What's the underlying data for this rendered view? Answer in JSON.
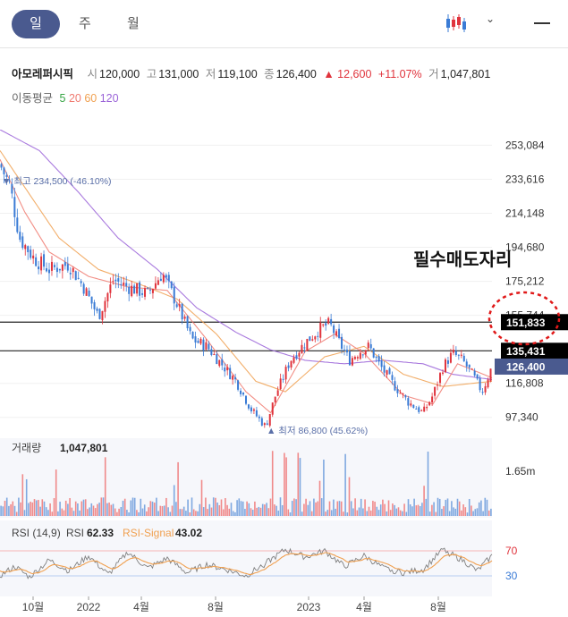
{
  "tabs": [
    {
      "label": "일",
      "active": true
    },
    {
      "label": "주",
      "active": false
    },
    {
      "label": "월",
      "active": false
    }
  ],
  "toolbar": {
    "chart_icon": "candlestick-icon",
    "dropdown_icon": "chevron-down-icon",
    "menu_icon": "menu-icon"
  },
  "quote": {
    "name": "아모레퍼시픽",
    "open_label": "시",
    "open": "120,000",
    "high_label": "고",
    "high": "131,000",
    "low_label": "저",
    "low": "119,100",
    "close_label": "종",
    "close": "126,400",
    "change": "▲ 12,600",
    "change_pct": "+11.07%",
    "volume_label": "거",
    "volume": "1,047,801"
  },
  "ma": {
    "label": "이동평균",
    "items": [
      {
        "period": "5",
        "color": "#36a544"
      },
      {
        "period": "20",
        "color": "#f07a70"
      },
      {
        "period": "60",
        "color": "#f0a050"
      },
      {
        "period": "120",
        "color": "#9a63d8"
      }
    ]
  },
  "colors": {
    "up": "#e0333c",
    "down": "#3a7bd5",
    "accent": "#4a5a8f",
    "rsi": "#808080",
    "rsi_signal": "#f0a050"
  },
  "chart_data": [
    {
      "type": "candlestick",
      "title": "",
      "x_ticks": [
        "10월",
        "2022",
        "4월",
        "8월",
        "2023",
        "4월",
        "8월"
      ],
      "y_ticks": [
        253084,
        233616,
        214148,
        194680,
        175212,
        155744,
        116808,
        97340
      ],
      "y_tick_labels": [
        "253,084",
        "233,616",
        "214,148",
        "194,680",
        "175,212",
        "155,744",
        "116,808",
        "97,340"
      ],
      "ylim": [
        88000,
        262000
      ],
      "close_path": [
        [
          0,
          242000
        ],
        [
          0.02,
          230000
        ],
        [
          0.04,
          200000
        ],
        [
          0.07,
          188000
        ],
        [
          0.1,
          182000
        ],
        [
          0.14,
          185000
        ],
        [
          0.17,
          172000
        ],
        [
          0.2,
          155000
        ],
        [
          0.23,
          176000
        ],
        [
          0.26,
          172000
        ],
        [
          0.3,
          168000
        ],
        [
          0.33,
          180000
        ],
        [
          0.36,
          162000
        ],
        [
          0.39,
          142000
        ],
        [
          0.42,
          138000
        ],
        [
          0.45,
          128000
        ],
        [
          0.48,
          118000
        ],
        [
          0.51,
          102000
        ],
        [
          0.54,
          92000
        ],
        [
          0.56,
          110000
        ],
        [
          0.59,
          130000
        ],
        [
          0.62,
          140000
        ],
        [
          0.65,
          148000
        ],
        [
          0.67,
          151000
        ],
        [
          0.69,
          140000
        ],
        [
          0.71,
          130000
        ],
        [
          0.73,
          135000
        ],
        [
          0.75,
          138000
        ],
        [
          0.77,
          128000
        ],
        [
          0.8,
          116000
        ],
        [
          0.83,
          106000
        ],
        [
          0.86,
          100000
        ],
        [
          0.88,
          110000
        ],
        [
          0.9,
          126000
        ],
        [
          0.92,
          134000
        ],
        [
          0.94,
          130000
        ],
        [
          0.96,
          122000
        ],
        [
          0.98,
          112000
        ],
        [
          1.0,
          126400
        ]
      ],
      "ma120_path": [
        [
          0,
          262000
        ],
        [
          0.08,
          250000
        ],
        [
          0.16,
          226000
        ],
        [
          0.24,
          200000
        ],
        [
          0.32,
          182000
        ],
        [
          0.4,
          160000
        ],
        [
          0.48,
          146000
        ],
        [
          0.55,
          136000
        ],
        [
          0.62,
          130000
        ],
        [
          0.7,
          128000
        ],
        [
          0.78,
          130000
        ],
        [
          0.86,
          128000
        ],
        [
          0.92,
          122000
        ],
        [
          1.0,
          119000
        ]
      ],
      "ma60_path": [
        [
          0,
          250000
        ],
        [
          0.06,
          225000
        ],
        [
          0.12,
          200000
        ],
        [
          0.2,
          182000
        ],
        [
          0.28,
          174000
        ],
        [
          0.36,
          165000
        ],
        [
          0.44,
          145000
        ],
        [
          0.52,
          118000
        ],
        [
          0.58,
          112000
        ],
        [
          0.66,
          132000
        ],
        [
          0.74,
          138000
        ],
        [
          0.82,
          122000
        ],
        [
          0.9,
          115000
        ],
        [
          1.0,
          118000
        ]
      ],
      "ma20_path": [
        [
          0,
          245000
        ],
        [
          0.05,
          215000
        ],
        [
          0.1,
          192000
        ],
        [
          0.18,
          178000
        ],
        [
          0.26,
          172000
        ],
        [
          0.34,
          170000
        ],
        [
          0.42,
          142000
        ],
        [
          0.5,
          112000
        ],
        [
          0.55,
          100000
        ],
        [
          0.62,
          135000
        ],
        [
          0.68,
          145000
        ],
        [
          0.74,
          134000
        ],
        [
          0.82,
          110000
        ],
        [
          0.88,
          105000
        ],
        [
          0.93,
          128000
        ],
        [
          1.0,
          120000
        ]
      ],
      "levels": [
        {
          "value": 151833,
          "label": "151,833"
        },
        {
          "value": 135431,
          "label": "135,431"
        }
      ],
      "current": {
        "value": 126400,
        "label": "126,400"
      },
      "high_note": "▼ 최고 234,500 (-46.10%)",
      "low_note": "▲ 최저 86,800 (45.62%)",
      "annotation": "필수매도자리"
    },
    {
      "type": "bar",
      "title": "거래량",
      "value_label": "1,047,801",
      "y_tick_labels": [
        "1.65m"
      ],
      "ymax_m": 1.65
    },
    {
      "type": "line",
      "title": "RSI (14,9)",
      "series": [
        {
          "name": "RSI",
          "value": "62.33"
        },
        {
          "name": "RSI-Signal",
          "value": "43.02"
        }
      ],
      "ylim": [
        0,
        100
      ],
      "y_ticks": [
        70,
        30
      ],
      "y_tick_labels": [
        "70",
        "30"
      ],
      "rsi_path": [
        [
          0,
          30
        ],
        [
          0.03,
          45
        ],
        [
          0.06,
          28
        ],
        [
          0.1,
          55
        ],
        [
          0.14,
          38
        ],
        [
          0.18,
          62
        ],
        [
          0.22,
          32
        ],
        [
          0.26,
          68
        ],
        [
          0.3,
          42
        ],
        [
          0.34,
          58
        ],
        [
          0.38,
          35
        ],
        [
          0.42,
          48
        ],
        [
          0.46,
          40
        ],
        [
          0.5,
          30
        ],
        [
          0.54,
          50
        ],
        [
          0.58,
          72
        ],
        [
          0.62,
          60
        ],
        [
          0.66,
          70
        ],
        [
          0.7,
          45
        ],
        [
          0.74,
          62
        ],
        [
          0.78,
          42
        ],
        [
          0.82,
          35
        ],
        [
          0.86,
          40
        ],
        [
          0.9,
          72
        ],
        [
          0.94,
          55
        ],
        [
          0.97,
          38
        ],
        [
          1.0,
          62
        ]
      ]
    }
  ]
}
